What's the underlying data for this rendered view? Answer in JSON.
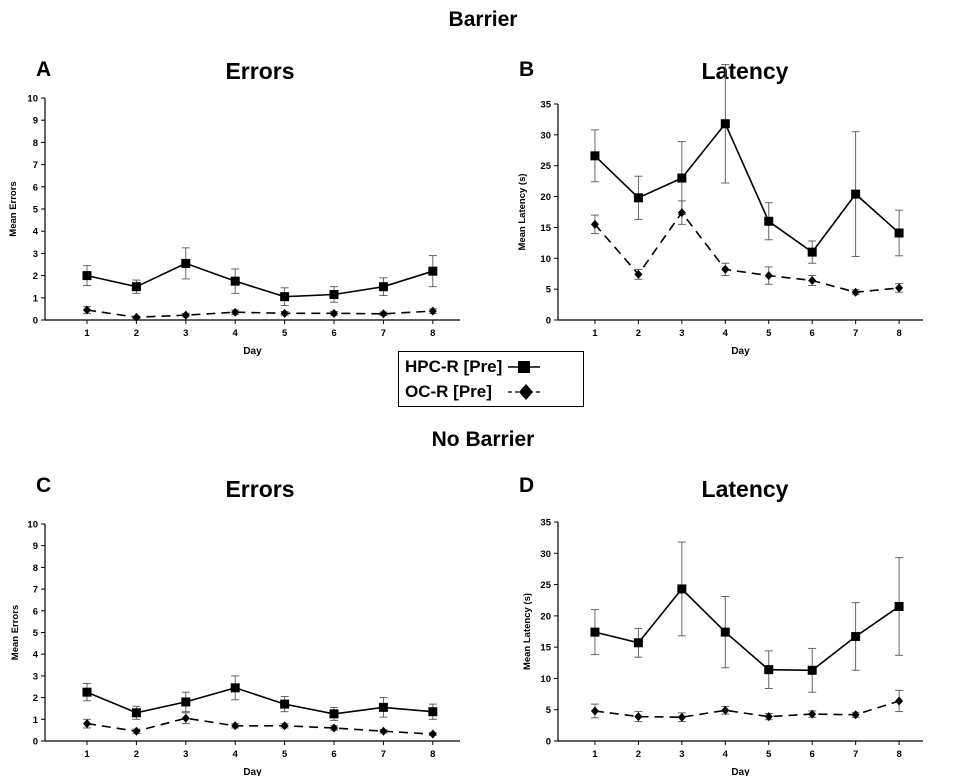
{
  "sections": {
    "top_title": "Barrier",
    "bottom_title": "No Barrier"
  },
  "legend": {
    "hpc_label": "HPC-R [Pre]",
    "oc_label": "OC-R [Pre]"
  },
  "chart_data": [
    {
      "id": "A",
      "type": "line",
      "letter": "A",
      "title": "Errors",
      "xlabel": "Day",
      "ylabel": "Mean Errors",
      "ylim": [
        0,
        10
      ],
      "yticks": [
        0,
        1,
        2,
        3,
        4,
        5,
        6,
        7,
        8,
        9,
        10
      ],
      "x": [
        1,
        2,
        3,
        4,
        5,
        6,
        7,
        8
      ],
      "grid": false,
      "series": [
        {
          "name": "HPC-R [Pre]",
          "style": "solid",
          "marker": "square",
          "values": [
            2.0,
            1.5,
            2.55,
            1.75,
            1.05,
            1.15,
            1.5,
            2.2
          ],
          "errors": [
            0.45,
            0.3,
            0.7,
            0.55,
            0.4,
            0.35,
            0.4,
            0.7
          ]
        },
        {
          "name": "OC-R [Pre]",
          "style": "dashed",
          "marker": "diamond",
          "values": [
            0.45,
            0.12,
            0.22,
            0.35,
            0.3,
            0.3,
            0.28,
            0.4
          ],
          "errors": [
            0.15,
            0.05,
            0.08,
            0.1,
            0.08,
            0.08,
            0.08,
            0.1
          ]
        }
      ]
    },
    {
      "id": "B",
      "type": "line",
      "letter": "B",
      "title": "Latency",
      "xlabel": "Day",
      "ylabel": "Mean Latency (s)",
      "ylim": [
        0,
        35
      ],
      "yticks": [
        0,
        5,
        10,
        15,
        20,
        25,
        30,
        35
      ],
      "x": [
        1,
        2,
        3,
        4,
        5,
        6,
        7,
        8
      ],
      "grid": false,
      "series": [
        {
          "name": "HPC-R [Pre]",
          "style": "solid",
          "marker": "square",
          "values": [
            26.6,
            19.8,
            23.0,
            31.8,
            16.0,
            11.0,
            20.4,
            14.1
          ],
          "errors": [
            4.2,
            3.5,
            5.9,
            9.6,
            3.0,
            1.8,
            10.1,
            3.7
          ]
        },
        {
          "name": "OC-R [Pre]",
          "style": "dashed",
          "marker": "diamond",
          "values": [
            15.5,
            7.4,
            17.4,
            8.2,
            7.2,
            6.4,
            4.5,
            5.2
          ],
          "errors": [
            1.5,
            0.8,
            1.9,
            1.0,
            1.4,
            0.8,
            0.4,
            0.7
          ]
        }
      ]
    },
    {
      "id": "C",
      "type": "line",
      "letter": "C",
      "title": "Errors",
      "xlabel": "Day",
      "ylabel": "Mean Errors",
      "ylim": [
        0,
        10
      ],
      "yticks": [
        0,
        1,
        2,
        3,
        4,
        5,
        6,
        7,
        8,
        9,
        10
      ],
      "x": [
        1,
        2,
        3,
        4,
        5,
        6,
        7,
        8
      ],
      "grid": false,
      "series": [
        {
          "name": "HPC-R [Pre]",
          "style": "solid",
          "marker": "square",
          "values": [
            2.25,
            1.3,
            1.8,
            2.45,
            1.7,
            1.25,
            1.55,
            1.35
          ],
          "errors": [
            0.4,
            0.3,
            0.45,
            0.55,
            0.35,
            0.3,
            0.45,
            0.35
          ]
        },
        {
          "name": "OC-R [Pre]",
          "style": "dashed",
          "marker": "diamond",
          "values": [
            0.8,
            0.45,
            1.05,
            0.7,
            0.7,
            0.6,
            0.45,
            0.32
          ],
          "errors": [
            0.2,
            0.1,
            0.25,
            0.1,
            0.1,
            0.1,
            0.08,
            0.06
          ]
        }
      ]
    },
    {
      "id": "D",
      "type": "line",
      "letter": "D",
      "title": "Latency",
      "xlabel": "Day",
      "ylabel": "Mean Latency (s)",
      "ylim": [
        0,
        35
      ],
      "yticks": [
        0,
        5,
        10,
        15,
        20,
        25,
        30,
        35
      ],
      "x": [
        1,
        2,
        3,
        4,
        5,
        6,
        7,
        8
      ],
      "grid": false,
      "series": [
        {
          "name": "HPC-R [Pre]",
          "style": "solid",
          "marker": "square",
          "values": [
            17.4,
            15.7,
            24.3,
            17.4,
            11.4,
            11.3,
            16.7,
            21.5
          ],
          "errors": [
            3.6,
            2.3,
            7.5,
            5.7,
            3.0,
            3.5,
            5.4,
            7.8
          ]
        },
        {
          "name": "OC-R [Pre]",
          "style": "dashed",
          "marker": "diamond",
          "values": [
            4.8,
            3.9,
            3.8,
            4.9,
            3.9,
            4.3,
            4.2,
            6.4
          ],
          "errors": [
            1.1,
            0.8,
            0.7,
            0.6,
            0.5,
            0.5,
            0.4,
            1.7
          ]
        }
      ]
    }
  ]
}
